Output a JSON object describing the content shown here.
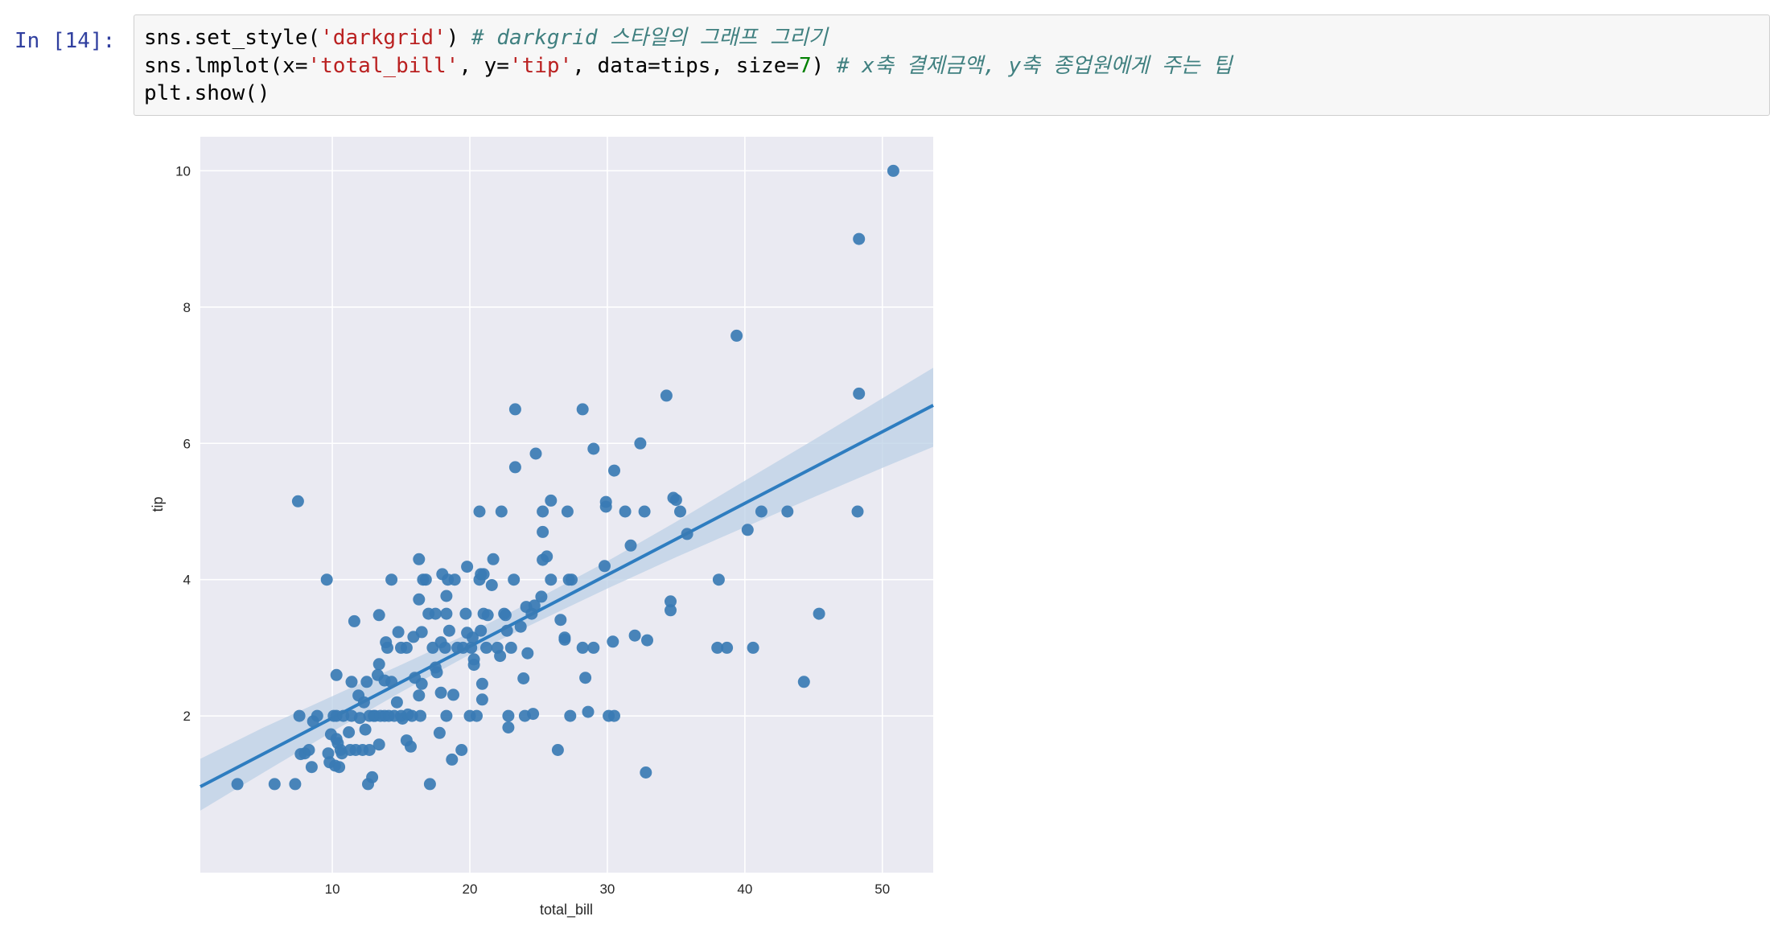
{
  "cell": {
    "prompt": "In [14]:",
    "lines": [
      [
        {
          "t": "sns.set_style(",
          "c": ""
        },
        {
          "t": "'darkgrid'",
          "c": "str"
        },
        {
          "t": ") ",
          "c": ""
        },
        {
          "t": "# darkgrid 스타일의 그래프 그리기",
          "c": "cmt"
        }
      ],
      [
        {
          "t": "sns.lmplot(x=",
          "c": ""
        },
        {
          "t": "'total_bill'",
          "c": "str"
        },
        {
          "t": ", y=",
          "c": ""
        },
        {
          "t": "'tip'",
          "c": "str"
        },
        {
          "t": ", data=tips, size=",
          "c": ""
        },
        {
          "t": "7",
          "c": "num"
        },
        {
          "t": ") ",
          "c": ""
        },
        {
          "t": "# x축 결제금액, y축 종업원에게 주는 팁",
          "c": "cmt"
        }
      ],
      [
        {
          "t": "plt.show()",
          "c": ""
        }
      ]
    ]
  },
  "chart_data": {
    "type": "scatter",
    "style": "darkgrid",
    "xlabel": "total_bill",
    "ylabel": "tip",
    "xlim": [
      0.4,
      53.7
    ],
    "ylim": [
      -0.3,
      10.5
    ],
    "xticks": [
      10,
      20,
      30,
      40,
      50
    ],
    "yticks": [
      2,
      4,
      6,
      8,
      10
    ],
    "grid": true,
    "colors": {
      "background": "#eaeaf2",
      "grid": "#ffffff",
      "points": "#3a7bb4",
      "regression_line": "#2e7dc0",
      "ci_band": "#bcd0e6"
    },
    "regression": {
      "slope": 0.105,
      "intercept": 0.92
    },
    "confidence_band": {
      "x": [
        0.4,
        5,
        10,
        15,
        19.8,
        25,
        30,
        35,
        40,
        45,
        50,
        53.7
      ],
      "lower": [
        0.61,
        1.17,
        1.77,
        2.35,
        2.88,
        3.39,
        3.87,
        4.33,
        4.77,
        5.21,
        5.64,
        5.95
      ],
      "upper": [
        1.37,
        1.83,
        2.29,
        2.75,
        3.2,
        3.73,
        4.27,
        4.85,
        5.45,
        6.05,
        6.66,
        7.11
      ]
    },
    "points": [
      [
        3.1,
        1.0
      ],
      [
        5.8,
        1.0
      ],
      [
        7.3,
        1.0
      ],
      [
        7.5,
        5.15
      ],
      [
        7.6,
        2.0
      ],
      [
        7.7,
        1.44
      ],
      [
        8.0,
        1.45
      ],
      [
        8.3,
        1.5
      ],
      [
        8.5,
        1.25
      ],
      [
        8.6,
        1.92
      ],
      [
        8.9,
        2.0
      ],
      [
        9.6,
        4.0
      ],
      [
        9.7,
        1.45
      ],
      [
        9.8,
        1.32
      ],
      [
        9.9,
        1.73
      ],
      [
        10.1,
        2.0
      ],
      [
        10.2,
        1.27
      ],
      [
        10.3,
        2.6
      ],
      [
        10.3,
        1.66
      ],
      [
        10.3,
        2.0
      ],
      [
        10.4,
        1.6
      ],
      [
        10.5,
        1.25
      ],
      [
        10.6,
        1.5
      ],
      [
        10.7,
        1.45
      ],
      [
        10.8,
        2.0
      ],
      [
        11.2,
        1.76
      ],
      [
        11.3,
        1.5
      ],
      [
        11.4,
        2.5
      ],
      [
        11.4,
        2.0
      ],
      [
        11.6,
        3.39
      ],
      [
        11.7,
        1.5
      ],
      [
        11.9,
        2.3
      ],
      [
        12.0,
        1.97
      ],
      [
        12.2,
        1.5
      ],
      [
        12.3,
        2.2
      ],
      [
        12.4,
        1.8
      ],
      [
        12.5,
        2.5
      ],
      [
        12.6,
        1.0
      ],
      [
        12.7,
        1.5
      ],
      [
        12.7,
        2.0
      ],
      [
        12.9,
        1.1
      ],
      [
        13.0,
        2.0
      ],
      [
        13.1,
        2.0
      ],
      [
        13.3,
        2.6
      ],
      [
        13.4,
        2.76
      ],
      [
        13.4,
        1.58
      ],
      [
        13.4,
        3.48
      ],
      [
        13.5,
        2.0
      ],
      [
        13.8,
        2.0
      ],
      [
        13.8,
        2.52
      ],
      [
        13.9,
        3.08
      ],
      [
        14.0,
        3.0
      ],
      [
        14.1,
        2.0
      ],
      [
        14.3,
        4.0
      ],
      [
        14.3,
        2.5
      ],
      [
        14.5,
        2.0
      ],
      [
        14.7,
        2.2
      ],
      [
        14.8,
        3.23
      ],
      [
        15.0,
        2.0
      ],
      [
        15.0,
        3.0
      ],
      [
        15.1,
        1.96
      ],
      [
        15.4,
        1.64
      ],
      [
        15.4,
        3.0
      ],
      [
        15.5,
        2.02
      ],
      [
        15.7,
        1.55
      ],
      [
        15.8,
        2.0
      ],
      [
        15.9,
        3.16
      ],
      [
        16.0,
        2.56
      ],
      [
        16.3,
        2.3
      ],
      [
        16.3,
        3.71
      ],
      [
        16.3,
        4.3
      ],
      [
        16.4,
        2.0
      ],
      [
        16.5,
        2.47
      ],
      [
        16.5,
        3.23
      ],
      [
        16.6,
        4.0
      ],
      [
        16.8,
        4.0
      ],
      [
        17.0,
        3.5
      ],
      [
        17.1,
        1.0
      ],
      [
        17.3,
        3.0
      ],
      [
        17.5,
        2.71
      ],
      [
        17.5,
        3.5
      ],
      [
        17.6,
        2.64
      ],
      [
        17.8,
        1.75
      ],
      [
        17.9,
        2.34
      ],
      [
        17.9,
        3.08
      ],
      [
        18.0,
        4.08
      ],
      [
        18.2,
        3.0
      ],
      [
        18.3,
        2.0
      ],
      [
        18.3,
        3.5
      ],
      [
        18.3,
        3.76
      ],
      [
        18.4,
        4.0
      ],
      [
        18.5,
        3.25
      ],
      [
        18.7,
        1.36
      ],
      [
        18.8,
        2.31
      ],
      [
        18.9,
        4.0
      ],
      [
        19.1,
        3.0
      ],
      [
        19.4,
        1.5
      ],
      [
        19.5,
        3.0
      ],
      [
        19.7,
        3.5
      ],
      [
        19.8,
        3.22
      ],
      [
        19.8,
        4.19
      ],
      [
        20.0,
        2.0
      ],
      [
        20.1,
        3.0
      ],
      [
        20.2,
        3.15
      ],
      [
        20.3,
        2.75
      ],
      [
        20.3,
        2.83
      ],
      [
        20.5,
        2.0
      ],
      [
        20.7,
        4.0
      ],
      [
        20.7,
        5.0
      ],
      [
        20.8,
        4.08
      ],
      [
        20.8,
        3.25
      ],
      [
        20.9,
        2.24
      ],
      [
        20.9,
        2.47
      ],
      [
        21.0,
        3.5
      ],
      [
        21.0,
        4.08
      ],
      [
        21.2,
        3.0
      ],
      [
        21.3,
        3.48
      ],
      [
        21.6,
        3.92
      ],
      [
        21.7,
        4.3
      ],
      [
        22.0,
        3.0
      ],
      [
        22.2,
        2.88
      ],
      [
        22.3,
        5.0
      ],
      [
        22.5,
        3.5
      ],
      [
        22.6,
        3.48
      ],
      [
        22.7,
        3.25
      ],
      [
        22.8,
        1.83
      ],
      [
        22.8,
        2.0
      ],
      [
        23.0,
        3.0
      ],
      [
        23.2,
        4.0
      ],
      [
        23.3,
        6.5
      ],
      [
        23.3,
        5.65
      ],
      [
        23.7,
        3.31
      ],
      [
        23.9,
        2.55
      ],
      [
        24.0,
        2.0
      ],
      [
        24.1,
        3.6
      ],
      [
        24.2,
        2.92
      ],
      [
        24.5,
        3.5
      ],
      [
        24.6,
        2.03
      ],
      [
        24.7,
        3.62
      ],
      [
        24.8,
        5.85
      ],
      [
        25.2,
        3.75
      ],
      [
        25.3,
        4.29
      ],
      [
        25.3,
        4.7
      ],
      [
        25.3,
        5.0
      ],
      [
        25.6,
        4.34
      ],
      [
        25.9,
        4.0
      ],
      [
        25.9,
        5.16
      ],
      [
        26.4,
        1.5
      ],
      [
        26.6,
        3.41
      ],
      [
        26.9,
        3.12
      ],
      [
        26.9,
        3.15
      ],
      [
        27.1,
        5.0
      ],
      [
        27.2,
        4.0
      ],
      [
        27.3,
        2.0
      ],
      [
        27.4,
        4.0
      ],
      [
        28.2,
        3.0
      ],
      [
        28.2,
        6.5
      ],
      [
        28.4,
        2.56
      ],
      [
        28.6,
        2.06
      ],
      [
        29.0,
        3.0
      ],
      [
        29.0,
        5.92
      ],
      [
        29.8,
        4.2
      ],
      [
        29.9,
        5.07
      ],
      [
        29.9,
        5.14
      ],
      [
        30.1,
        2.0
      ],
      [
        30.4,
        3.09
      ],
      [
        30.5,
        2.0
      ],
      [
        30.5,
        5.6
      ],
      [
        31.3,
        5.0
      ],
      [
        31.7,
        4.5
      ],
      [
        32.0,
        3.18
      ],
      [
        32.4,
        6.0
      ],
      [
        32.7,
        5.0
      ],
      [
        32.8,
        1.17
      ],
      [
        32.9,
        3.11
      ],
      [
        34.3,
        6.7
      ],
      [
        34.6,
        3.68
      ],
      [
        34.6,
        3.55
      ],
      [
        34.8,
        5.2
      ],
      [
        35.0,
        5.17
      ],
      [
        35.3,
        5.0
      ],
      [
        35.8,
        4.67
      ],
      [
        38.0,
        3.0
      ],
      [
        38.1,
        4.0
      ],
      [
        38.7,
        3.0
      ],
      [
        39.4,
        7.58
      ],
      [
        40.2,
        4.73
      ],
      [
        40.6,
        3.0
      ],
      [
        41.2,
        5.0
      ],
      [
        43.1,
        5.0
      ],
      [
        44.3,
        2.5
      ],
      [
        45.4,
        3.5
      ],
      [
        48.2,
        5.0
      ],
      [
        48.3,
        6.73
      ],
      [
        48.3,
        9.0
      ],
      [
        50.8,
        10.0
      ]
    ]
  }
}
